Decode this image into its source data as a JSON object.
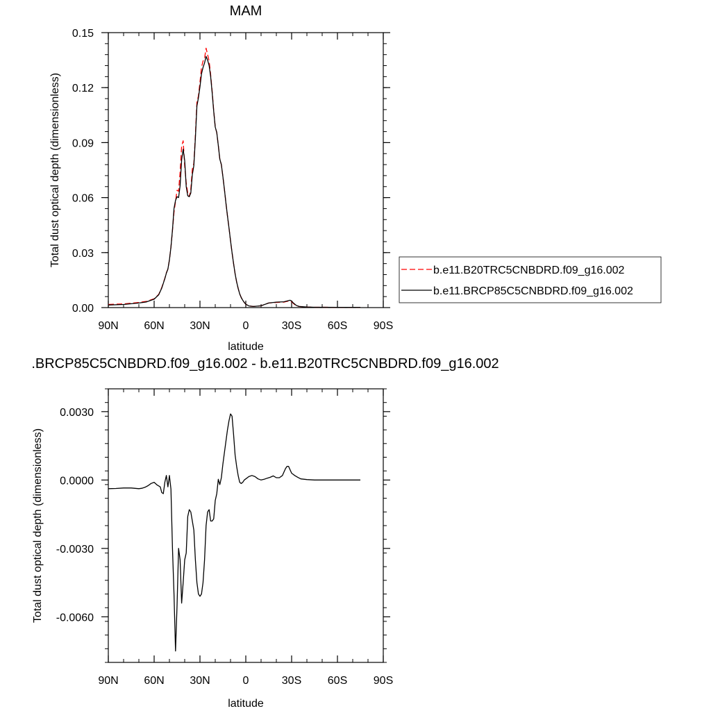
{
  "chart_data": [
    {
      "type": "line",
      "title": "MAM",
      "xlabel": "latitude",
      "ylabel": "Total dust optical depth (dimensionless)",
      "xlim": [
        90,
        -90
      ],
      "ylim": [
        0,
        0.15
      ],
      "x_ticks": [
        90,
        60,
        30,
        0,
        -30,
        -60,
        -90
      ],
      "x_tick_labels": [
        "90N",
        "60N",
        "30N",
        "0",
        "30S",
        "60S",
        "90S"
      ],
      "y_ticks": [
        0,
        0.03,
        0.06,
        0.09,
        0.12,
        0.15
      ],
      "y_tick_labels": [
        "0.00",
        "0.03",
        "0.06",
        "0.09",
        "0.12",
        "0.15"
      ],
      "grid": false,
      "legend_position": "right",
      "series": [
        {
          "name": "b.e11.B20TRC5CNBDRD.f09_g16.002",
          "color": "#ff0000",
          "style": "dashed",
          "x": [
            90,
            80,
            70,
            65,
            60,
            57,
            55,
            53,
            52,
            51,
            50,
            49,
            48,
            47,
            46,
            45,
            44,
            43,
            42,
            41,
            40,
            39,
            38,
            37,
            36,
            35,
            34,
            33,
            32,
            31,
            30,
            29,
            28,
            27,
            26,
            25,
            24,
            23,
            22,
            21,
            20,
            19,
            18,
            17,
            16,
            15,
            14,
            13,
            12,
            11,
            10,
            9,
            8,
            7,
            6,
            5,
            4,
            3,
            2,
            1,
            0,
            -2,
            -5,
            -10,
            -15,
            -20,
            -25,
            -27,
            -29,
            -30,
            -31,
            -33,
            -35,
            -40,
            -45,
            -50,
            -60,
            -70,
            -75
          ],
          "y": [
            0.0017,
            0.002,
            0.0028,
            0.0034,
            0.0048,
            0.0072,
            0.011,
            0.016,
            0.019,
            0.021,
            0.026,
            0.033,
            0.042,
            0.052,
            0.058,
            0.064,
            0.0635,
            0.074,
            0.088,
            0.091,
            0.0775,
            0.068,
            0.0625,
            0.0605,
            0.0645,
            0.0755,
            0.0787,
            0.094,
            0.112,
            0.1155,
            0.123,
            0.131,
            0.1345,
            0.136,
            0.1415,
            0.138,
            0.1345,
            0.127,
            0.118,
            0.1075,
            0.0985,
            0.0955,
            0.0885,
            0.081,
            0.078,
            0.0715,
            0.0645,
            0.057,
            0.05,
            0.0435,
            0.0365,
            0.03,
            0.024,
            0.0185,
            0.014,
            0.0105,
            0.0075,
            0.0055,
            0.004,
            0.0028,
            0.0018,
            0.0009,
            0.0006,
            0.001,
            0.0025,
            0.0028,
            0.003,
            0.0034,
            0.0036,
            0.0033,
            0.0024,
            0.001,
            0.0006,
            0.0003,
            0.0002,
            0.0002,
            0.0001,
            0.0001,
            0.0001
          ]
        },
        {
          "name": "b.e11.BRCP85C5CNBDRD.f09_g16.002",
          "color": "#000000",
          "style": "solid",
          "x": [
            90,
            80,
            70,
            65,
            60,
            57,
            55,
            53,
            52,
            51,
            50,
            49,
            48,
            47,
            46,
            45,
            44,
            43,
            42,
            41,
            40,
            39,
            38,
            37,
            36,
            35,
            34,
            33,
            32,
            31,
            30,
            29,
            28,
            27,
            26,
            25,
            24,
            23,
            22,
            21,
            20,
            19,
            18,
            17,
            16,
            15,
            14,
            13,
            12,
            11,
            10,
            9,
            8,
            7,
            6,
            5,
            4,
            3,
            2,
            1,
            0,
            -2,
            -5,
            -10,
            -15,
            -20,
            -25,
            -27,
            -29,
            -30,
            -31,
            -33,
            -35,
            -40,
            -45,
            -50,
            -60,
            -70,
            -75
          ],
          "y": [
            0.0014,
            0.0017,
            0.0025,
            0.0031,
            0.0046,
            0.007,
            0.0107,
            0.0158,
            0.0188,
            0.021,
            0.026,
            0.033,
            0.0424,
            0.054,
            0.0585,
            0.0605,
            0.06,
            0.0665,
            0.0807,
            0.0864,
            0.0802,
            0.066,
            0.061,
            0.0605,
            0.0625,
            0.0725,
            0.0775,
            0.0925,
            0.11,
            0.1145,
            0.1205,
            0.1275,
            0.131,
            0.1335,
            0.137,
            0.135,
            0.132,
            0.126,
            0.117,
            0.107,
            0.0985,
            0.0955,
            0.0885,
            0.081,
            0.078,
            0.0715,
            0.0645,
            0.057,
            0.05,
            0.0435,
            0.0365,
            0.03,
            0.024,
            0.0185,
            0.014,
            0.0105,
            0.0075,
            0.0055,
            0.004,
            0.0028,
            0.0018,
            0.0009,
            0.0006,
            0.001,
            0.0025,
            0.003,
            0.0032,
            0.0036,
            0.004,
            0.0036,
            0.0026,
            0.0012,
            0.0006,
            0.0003,
            0.0002,
            0.0002,
            0.0001,
            0.0001,
            0.0001
          ]
        }
      ]
    },
    {
      "type": "line",
      "title": ".BRCP85C5CNBDRD.f09_g16.002 - b.e11.B20TRC5CNBDRD.f09_g16.002",
      "xlabel": "latitude",
      "ylabel": "Total dust optical depth (dimensionless)",
      "xlim": [
        90,
        -90
      ],
      "ylim": [
        -0.008,
        0.004
      ],
      "x_ticks": [
        90,
        60,
        30,
        0,
        -30,
        -60,
        -90
      ],
      "x_tick_labels": [
        "90N",
        "60N",
        "30N",
        "0",
        "30S",
        "60S",
        "90S"
      ],
      "y_ticks": [
        -0.006,
        -0.003,
        0,
        0.003
      ],
      "y_tick_labels": [
        "-0.0060",
        "-0.0030",
        "0.0000",
        "0.0030"
      ],
      "grid": false,
      "series": [
        {
          "name": "",
          "color": "#000000",
          "style": "solid",
          "x": [
            90,
            85,
            80,
            75,
            70,
            68,
            66,
            64,
            62,
            60,
            58,
            56,
            55,
            54,
            53,
            52,
            51,
            50,
            49,
            48,
            47,
            46,
            45,
            44,
            43,
            42,
            41,
            40,
            39,
            38,
            37,
            36,
            35,
            34,
            33,
            32,
            31,
            30,
            29,
            28,
            27,
            26,
            25,
            24,
            23,
            22,
            21,
            20,
            19,
            18,
            17,
            16,
            15,
            14,
            13,
            12,
            11,
            10,
            9,
            8,
            7,
            6,
            5,
            4,
            3,
            2,
            1,
            0,
            -2,
            -4,
            -6,
            -8,
            -10,
            -12,
            -14,
            -16,
            -18,
            -20,
            -22,
            -24,
            -25,
            -26,
            -27,
            -28,
            -29,
            -30,
            -31,
            -32,
            -34,
            -36,
            -40,
            -45,
            -50,
            -60,
            -70,
            -75
          ],
          "y": [
            -0.00038,
            -0.00037,
            -0.00035,
            -0.00035,
            -0.00038,
            -0.00036,
            -0.00032,
            -0.00025,
            -0.00015,
            -0.0001,
            -0.00022,
            -0.0003,
            -0.00055,
            -0.0006,
            -0.0001,
            0.0002,
            -0.0003,
            0.0002,
            -0.0004,
            -0.003,
            -0.005,
            -0.0075,
            -0.0055,
            -0.003,
            -0.0035,
            -0.0054,
            -0.0045,
            -0.0035,
            -0.0032,
            -0.0016,
            -0.0013,
            -0.0014,
            -0.0018,
            -0.0022,
            -0.0035,
            -0.0045,
            -0.005,
            -0.0051,
            -0.005,
            -0.0045,
            -0.0035,
            -0.002,
            -0.0014,
            -0.0013,
            -0.0018,
            -0.0018,
            -0.0017,
            -0.0009,
            -0.0006,
            3e-05,
            -0.0002,
            0.0001,
            0.0007,
            0.0012,
            0.0017,
            0.0022,
            0.0026,
            0.0029,
            0.0028,
            0.002,
            0.0011,
            0.0006,
            0.0002,
            -0.0001,
            -0.00015,
            -0.0001,
            0.0,
            5e-05,
            0.00015,
            0.0002,
            0.00015,
            5e-05,
            -0.0,
            3e-05,
            8e-05,
            0.00012,
            0.00018,
            0.0001,
            0.0001,
            0.0002,
            0.00035,
            0.0005,
            0.0006,
            0.0006,
            0.00045,
            0.0003,
            0.00025,
            0.0002,
            0.00012,
            5e-05,
            2e-05,
            0.0,
            0.0,
            0.0,
            0.0,
            0.0
          ]
        }
      ]
    }
  ]
}
